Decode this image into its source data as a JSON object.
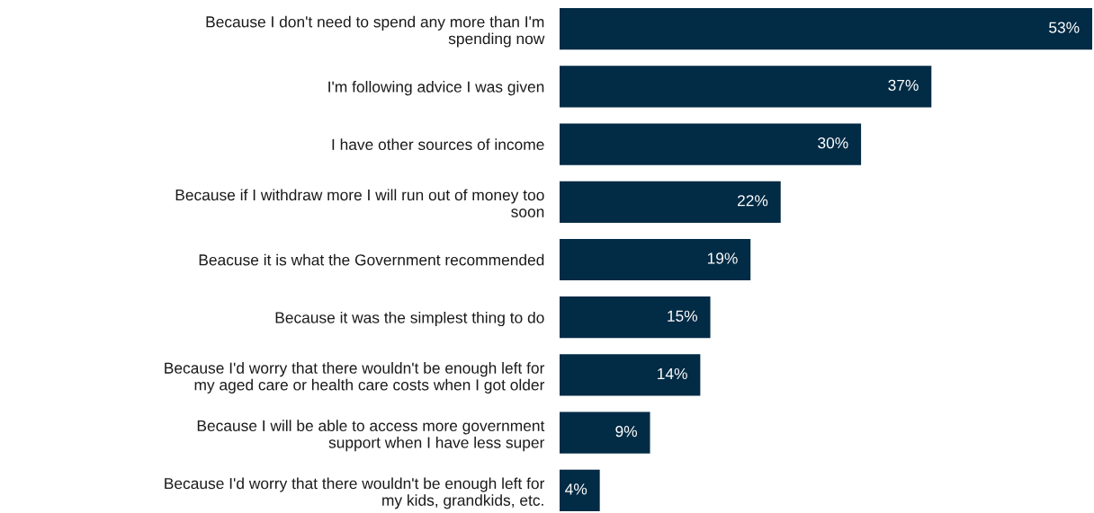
{
  "chart_data": {
    "type": "bar",
    "orientation": "horizontal",
    "categories": [
      "Because I don't need to spend any more than I'm\nspending now",
      "I'm following advice I was given",
      "I have other sources of income",
      "Because if I withdraw more I will run out of money too\nsoon",
      "Beacuse it is what the Government recommended",
      "Because it was the simplest thing to do",
      "Because I'd worry that there wouldn't be enough left for\nmy aged care or health care costs when I got older",
      "Because I will be able to access more government\nsupport when I have less super",
      "Because I'd worry that there wouldn't be enough left for\nmy kids, grandkids, etc."
    ],
    "values": [
      53,
      37,
      30,
      22,
      19,
      15,
      14,
      9,
      4
    ],
    "value_labels": [
      "53%",
      "37%",
      "30%",
      "22%",
      "19%",
      "15%",
      "14%",
      "9%",
      "4%"
    ],
    "color": "#022b45"
  }
}
